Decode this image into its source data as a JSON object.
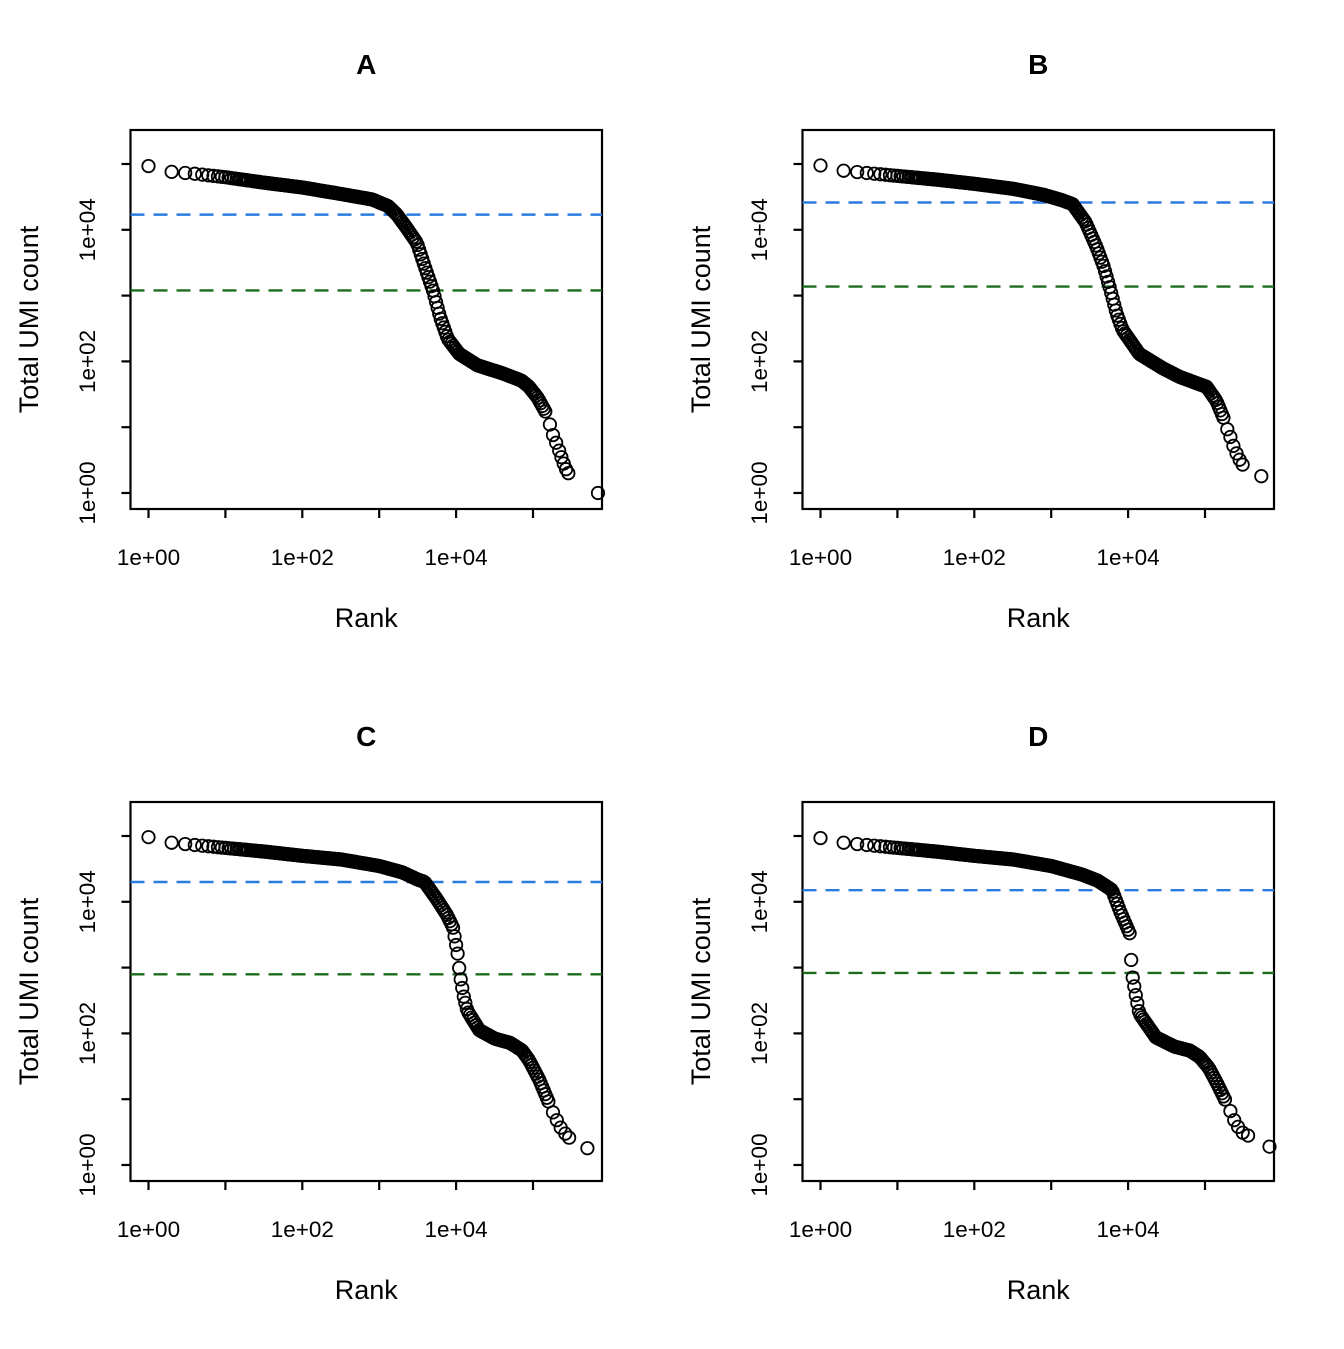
{
  "chart_data": {
    "type": "scatter",
    "layout": "2x2-panels",
    "title": "",
    "xlabel": "Rank",
    "ylabel": "Total UMI count",
    "log_x": true,
    "log_y": true,
    "x_axis_decades": [
      1,
      10,
      100,
      1000,
      10000,
      100000
    ],
    "y_axis_decades": [
      1,
      10,
      100,
      1000,
      10000,
      100000
    ],
    "x_tick_labels": [
      "1e+00",
      "1e+02",
      "1e+04"
    ],
    "y_tick_labels": [
      "1e+00",
      "1e+02",
      "1e+04"
    ],
    "xlim": [
      0.8,
      800000
    ],
    "ylim": [
      0.6,
      320000
    ],
    "grid": false,
    "legend": "none",
    "marker": "open-circle",
    "threshold_line_style": "dashed",
    "colors": {
      "points": "#000000",
      "axis": "#000000",
      "knee_line": "#2b7ce0",
      "inflection_line": "#1b6d1b",
      "background": "#ffffff"
    },
    "panels": [
      {
        "title": "A",
        "knee_threshold": 17000,
        "inflection_threshold": 1200,
        "curve": [
          [
            1,
            93000
          ],
          [
            2,
            76000
          ],
          [
            4,
            71000
          ],
          [
            10,
            63000
          ],
          [
            32,
            52000
          ],
          [
            100,
            44000
          ],
          [
            320,
            35000
          ],
          [
            800,
            29000
          ],
          [
            1300,
            23000
          ],
          [
            1700,
            17000
          ],
          [
            2300,
            10500
          ],
          [
            3100,
            6300
          ],
          [
            3900,
            2800
          ],
          [
            5000,
            1200
          ],
          [
            6200,
            470
          ],
          [
            7800,
            220
          ],
          [
            11000,
            130
          ],
          [
            19000,
            87
          ],
          [
            40000,
            66
          ],
          [
            71000,
            51
          ],
          [
            89000,
            41
          ],
          [
            115000,
            28
          ],
          [
            150000,
            16
          ]
        ],
        "tail_points": [
          [
            166000,
            11
          ],
          [
            182000,
            7.6
          ],
          [
            200000,
            5.8
          ],
          [
            219000,
            4.4
          ],
          [
            234000,
            3.5
          ],
          [
            251000,
            2.8
          ],
          [
            269000,
            2.3
          ],
          [
            288000,
            2.0
          ],
          [
            700000,
            1.0
          ]
        ]
      },
      {
        "title": "B",
        "knee_threshold": 26000,
        "inflection_threshold": 1370,
        "curve": [
          [
            1,
            95000
          ],
          [
            2,
            79000
          ],
          [
            4,
            73000
          ],
          [
            10,
            66000
          ],
          [
            32,
            58000
          ],
          [
            100,
            50000
          ],
          [
            320,
            42000
          ],
          [
            800,
            34000
          ],
          [
            1400,
            28000
          ],
          [
            1900,
            24500
          ],
          [
            2800,
            13000
          ],
          [
            3900,
            5400
          ],
          [
            4800,
            2800
          ],
          [
            5800,
            1300
          ],
          [
            7100,
            530
          ],
          [
            8500,
            300
          ],
          [
            14000,
            130
          ],
          [
            28000,
            79
          ],
          [
            47000,
            58
          ],
          [
            105000,
            41
          ],
          [
            141000,
            25
          ],
          [
            178000,
            13
          ]
        ],
        "tail_points": [
          [
            195000,
            9.3
          ],
          [
            214000,
            7.1
          ],
          [
            234000,
            5.2
          ],
          [
            257000,
            4.0
          ],
          [
            282000,
            3.2
          ],
          [
            309000,
            2.7
          ],
          [
            540000,
            1.8
          ]
        ]
      },
      {
        "title": "C",
        "knee_threshold": 20000,
        "inflection_threshold": 790,
        "curve": [
          [
            1,
            96000
          ],
          [
            2,
            79000
          ],
          [
            4,
            73000
          ],
          [
            10,
            66000
          ],
          [
            32,
            58000
          ],
          [
            100,
            50000
          ],
          [
            320,
            44000
          ],
          [
            1000,
            35000
          ],
          [
            2000,
            28000
          ],
          [
            3100,
            22000
          ],
          [
            3900,
            20000
          ],
          [
            5600,
            11000
          ],
          [
            7600,
            6300
          ],
          [
            9100,
            4100
          ],
          [
            10500,
            1600
          ],
          [
            11200,
            780
          ],
          [
            12600,
            360
          ],
          [
            14000,
            220
          ],
          [
            20000,
            112
          ],
          [
            32000,
            83
          ],
          [
            50000,
            72
          ],
          [
            72000,
            55
          ],
          [
            89000,
            39
          ],
          [
            120000,
            20
          ],
          [
            162000,
            8.7
          ]
        ],
        "tail_points": [
          [
            182000,
            6.3
          ],
          [
            204000,
            4.8
          ],
          [
            229000,
            3.7
          ],
          [
            263000,
            3.0
          ],
          [
            295000,
            2.6
          ],
          [
            510000,
            1.8
          ]
        ]
      },
      {
        "title": "D",
        "knee_threshold": 15000,
        "inflection_threshold": 830,
        "curve": [
          [
            1,
            93000
          ],
          [
            2,
            79000
          ],
          [
            4,
            73000
          ],
          [
            10,
            66000
          ],
          [
            32,
            58000
          ],
          [
            100,
            50000
          ],
          [
            320,
            44000
          ],
          [
            1000,
            35000
          ],
          [
            2500,
            26000
          ],
          [
            4000,
            21000
          ],
          [
            5300,
            17000
          ],
          [
            6200,
            15000
          ],
          [
            7900,
            7100
          ],
          [
            10500,
            3300
          ],
          [
            11200,
            830
          ],
          [
            12600,
            380
          ],
          [
            14000,
            200
          ],
          [
            23000,
            87
          ],
          [
            40000,
            63
          ],
          [
            63000,
            55
          ],
          [
            85000,
            44
          ],
          [
            112000,
            30
          ],
          [
            145000,
            17
          ],
          [
            190000,
            8.9
          ]
        ],
        "tail_points": [
          [
            214000,
            6.6
          ],
          [
            240000,
            4.8
          ],
          [
            269000,
            3.8
          ],
          [
            309000,
            3.1
          ],
          [
            363000,
            2.8
          ],
          [
            690000,
            1.9
          ]
        ]
      }
    ]
  }
}
